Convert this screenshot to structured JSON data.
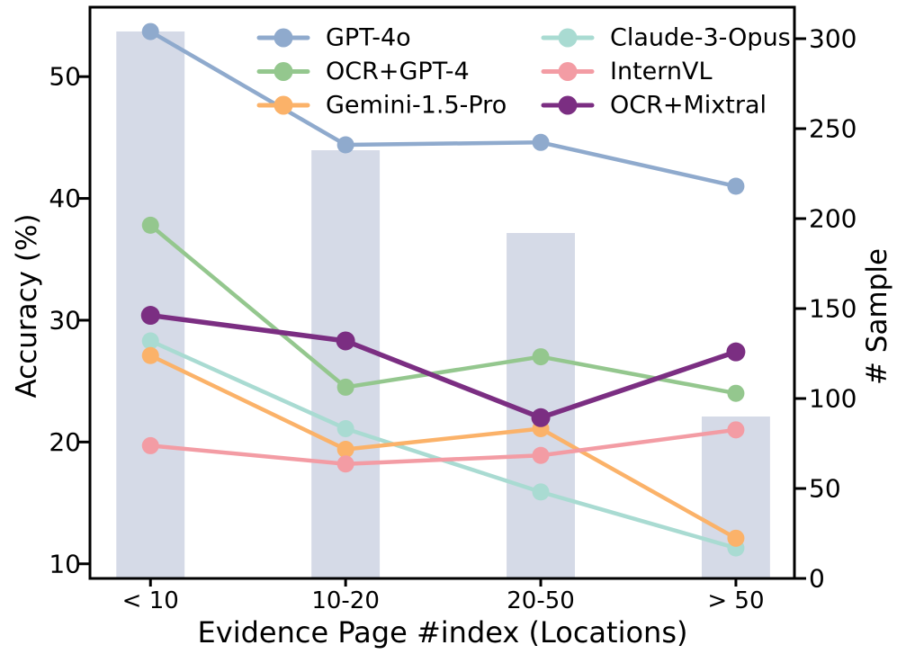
{
  "figure": {
    "background": "#ffffff",
    "text_color": "#000000",
    "spine_color": "#000000"
  },
  "chart_data": {
    "type": "line+bar",
    "title": "",
    "xlabel": "Evidence Page #index (Locations)",
    "ylabel_left": "Accuracy (%)",
    "ylabel_right": "# Sample",
    "categories": [
      "< 10",
      "10-20",
      "20-50",
      "> 50"
    ],
    "grid": false,
    "legend_position": "upper-center, two columns, no frame",
    "ylim_left": [
      8.8,
      55.7
    ],
    "ylim_right": [
      0,
      317.5
    ],
    "yticks_left": [
      10,
      20,
      30,
      40,
      50
    ],
    "yticks_right": [
      0,
      50,
      100,
      150,
      200,
      250,
      300
    ],
    "bar_series": {
      "name": "# Sample",
      "axis": "right",
      "color": "#d5dae7",
      "values": [
        304,
        238,
        192,
        90
      ]
    },
    "series": [
      {
        "name": "GPT-4o",
        "axis": "left",
        "color": "#8faacd",
        "values": [
          53.7,
          44.4,
          44.6,
          41.0
        ]
      },
      {
        "name": "OCR+GPT-4",
        "axis": "left",
        "color": "#94c78e",
        "values": [
          37.8,
          24.5,
          27.0,
          24.0
        ]
      },
      {
        "name": "Gemini-1.5-Pro",
        "axis": "left",
        "color": "#fbb269",
        "values": [
          27.1,
          19.4,
          21.1,
          12.1
        ]
      },
      {
        "name": "Claude-3-Opus",
        "axis": "left",
        "color": "#a9dbd2",
        "values": [
          28.3,
          21.1,
          15.9,
          11.3
        ]
      },
      {
        "name": "InternVL",
        "axis": "left",
        "color": "#f39ca4",
        "values": [
          19.7,
          18.2,
          18.9,
          21.0
        ]
      },
      {
        "name": "OCR+Mixtral",
        "axis": "left",
        "color": "#7b2e82",
        "values": [
          30.4,
          28.3,
          22.0,
          27.4
        ]
      }
    ],
    "legend_columns": [
      [
        "GPT-4o",
        "OCR+GPT-4",
        "Gemini-1.5-Pro"
      ],
      [
        "Claude-3-Opus",
        "InternVL",
        "OCR+Mixtral"
      ]
    ]
  }
}
